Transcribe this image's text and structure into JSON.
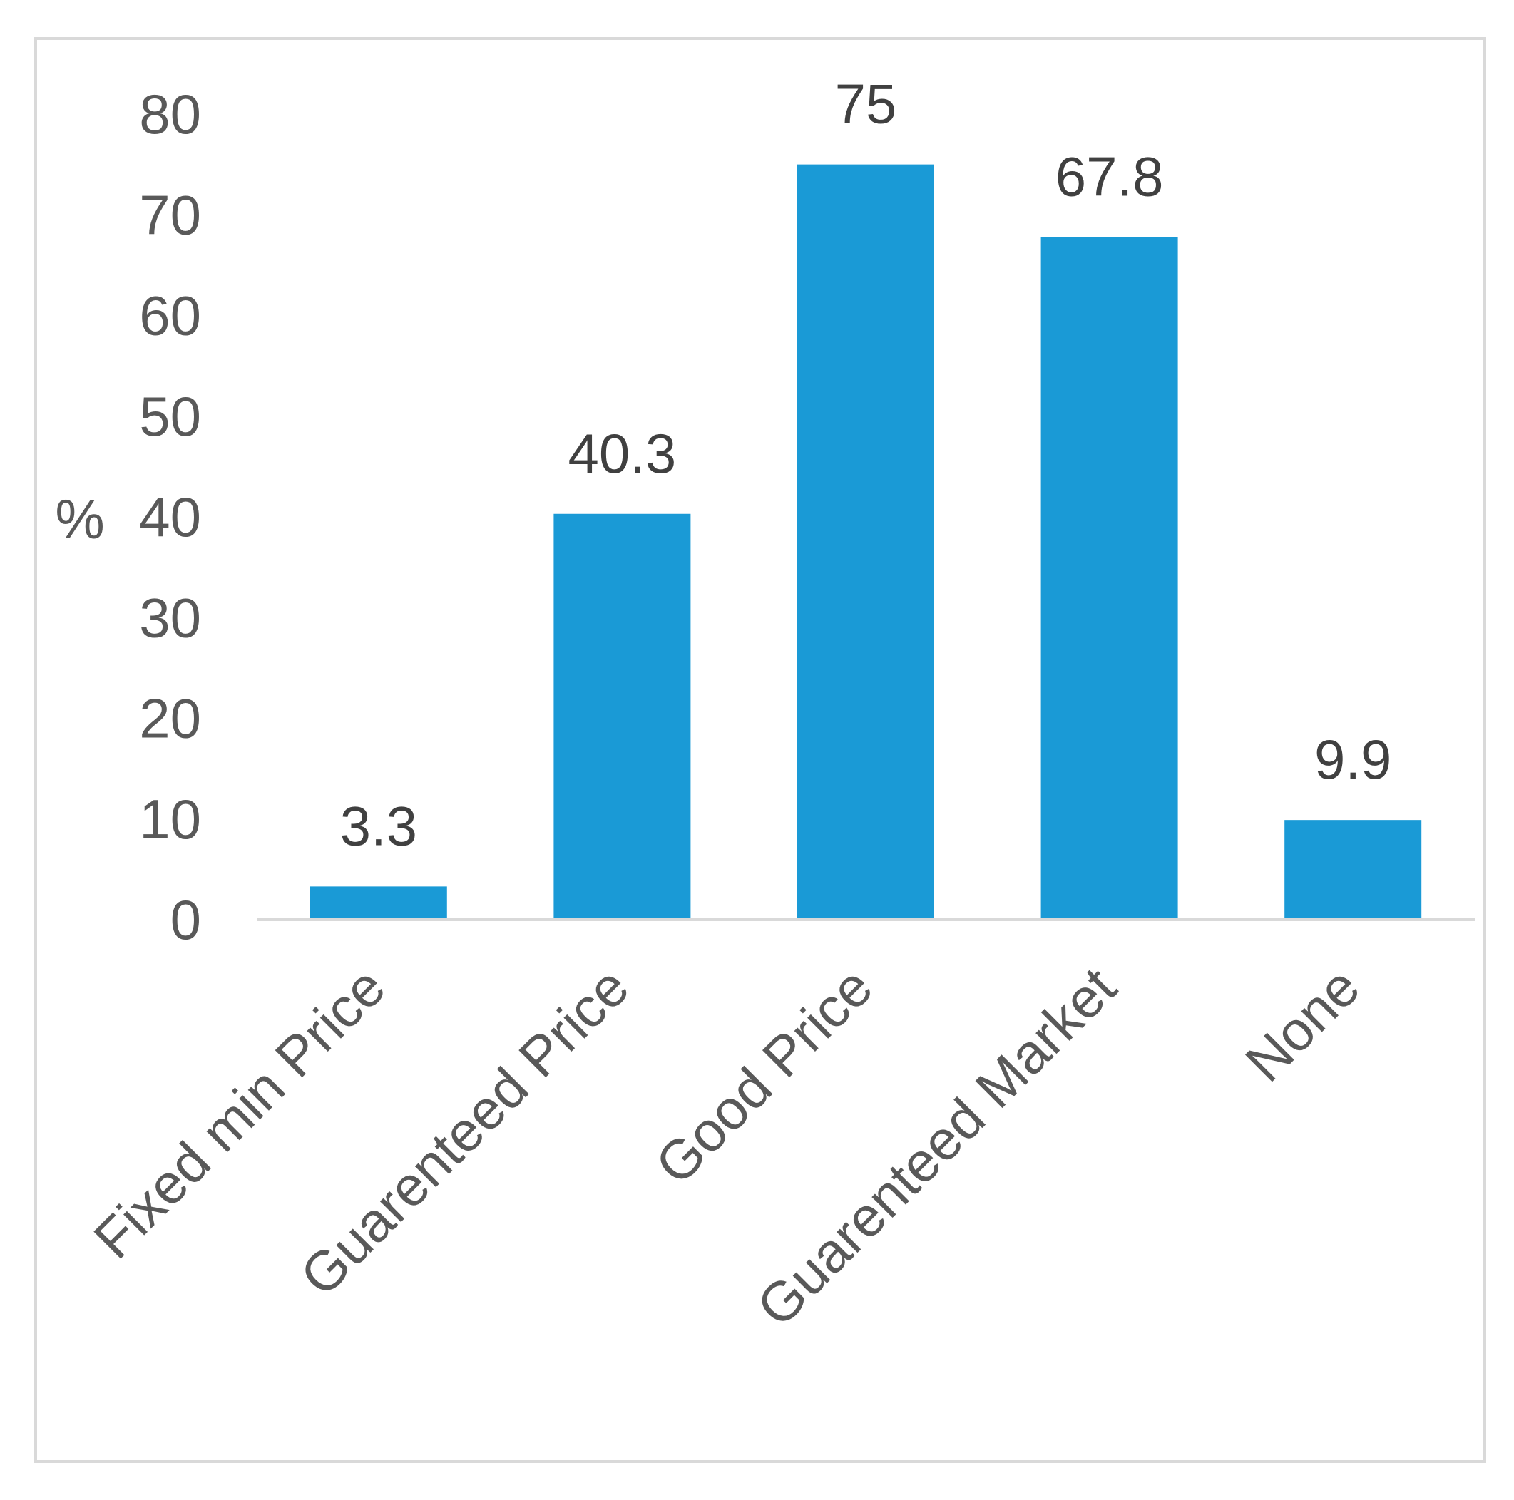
{
  "chart_data": {
    "type": "bar",
    "title": "",
    "xlabel": "",
    "ylabel": "%",
    "categories": [
      "Fixed min Price",
      "Guarenteed Price",
      "Good Price",
      "Guarenteed Market",
      "None"
    ],
    "values": [
      3.3,
      40.3,
      75,
      67.8,
      9.9
    ],
    "data_labels": [
      "3.3",
      "40.3",
      "75",
      "67.8",
      "9.9"
    ],
    "yticks": [
      "0",
      "10",
      "20",
      "30",
      "40",
      "50",
      "60",
      "70",
      "80"
    ],
    "ylim": [
      0,
      80
    ],
    "grid": false,
    "legend": "none",
    "bar_color": "#1a9ad6"
  }
}
